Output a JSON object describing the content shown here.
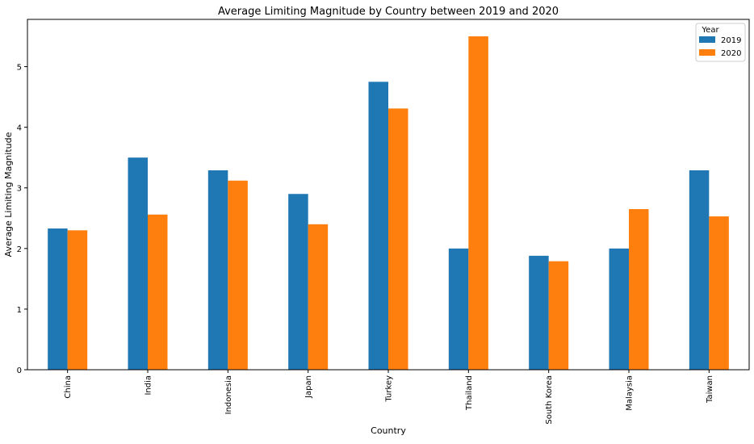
{
  "chart_data": {
    "type": "bar",
    "title": "Average Limiting Magnitude by Country between 2019 and 2020",
    "xlabel": "Country",
    "ylabel": "Average Limiting Magnitude",
    "categories": [
      "China",
      "India",
      "Indonesia",
      "Japan",
      "Turkey",
      "Thailand",
      "South Korea",
      "Malaysia",
      "Taiwan"
    ],
    "series": [
      {
        "name": "2019",
        "color": "#1f77b4",
        "values": [
          2.33,
          3.5,
          3.29,
          2.9,
          4.75,
          2.0,
          1.88,
          2.0,
          3.29
        ]
      },
      {
        "name": "2020",
        "color": "#ff7f0e",
        "values": [
          2.3,
          2.56,
          3.12,
          2.4,
          4.31,
          5.5,
          1.79,
          2.65,
          2.53
        ]
      }
    ],
    "ylim": [
      0,
      5.78
    ],
    "yticks": [
      0,
      1,
      2,
      3,
      4,
      5
    ],
    "grid": false,
    "legend": {
      "title": "Year",
      "placement": "top-right"
    }
  }
}
